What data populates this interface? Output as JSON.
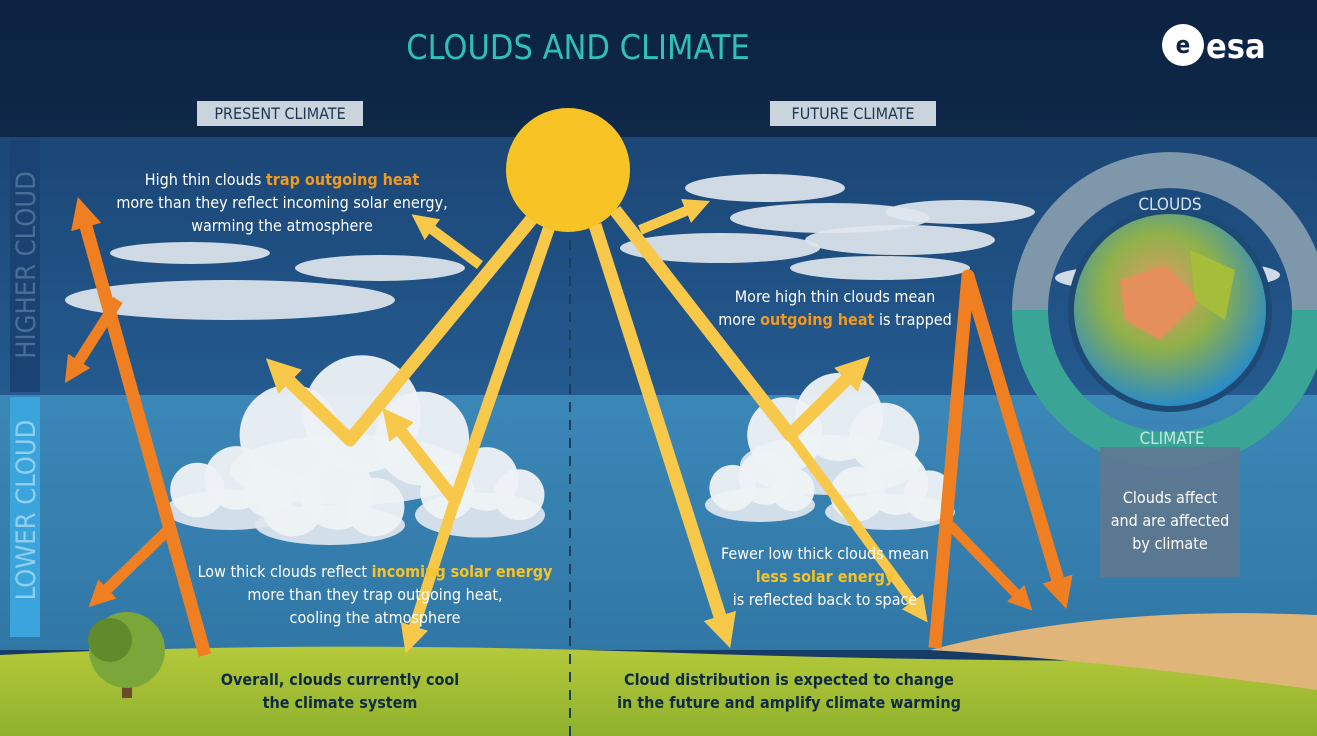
{
  "header": {
    "title": "CLOUDS AND CLIMATE",
    "logo": "esa"
  },
  "panels": {
    "present": "PRESENT CLIMATE",
    "future": "FUTURE CLIMATE"
  },
  "side_labels": {
    "higher": "HIGHER CLOUD",
    "lower": "LOWER CLOUD"
  },
  "notes": [
    {
      "lines": [
        [
          {
            "text": "High thin clouds "
          },
          {
            "text": "trap outgoing heat",
            "emphasis": "#f39a1e"
          }
        ],
        [
          {
            "text": "more than they reflect incoming solar energy,"
          }
        ],
        [
          {
            "text": "warming the atmosphere"
          }
        ]
      ]
    },
    {
      "lines": [
        [
          {
            "text": "Low thick clouds reflect "
          },
          {
            "text": "incoming solar energy",
            "emphasis": "#f7c325"
          }
        ],
        [
          {
            "text": "more than they trap outgoing heat,"
          }
        ],
        [
          {
            "text": "cooling the atmosphere"
          }
        ]
      ]
    },
    {
      "lines": [
        [
          {
            "text": "More high thin clouds mean"
          }
        ],
        [
          {
            "text": "more "
          },
          {
            "text": "outgoing heat",
            "emphasis": "#f39a1e"
          },
          {
            "text": " is trapped"
          }
        ]
      ]
    },
    {
      "lines": [
        [
          {
            "text": "Fewer low thick clouds mean"
          }
        ],
        [
          {
            "text": "less solar energy",
            "emphasis": "#f7c325"
          }
        ],
        [
          {
            "text": "is reflected back to space"
          }
        ]
      ]
    }
  ],
  "summary": {
    "present": [
      "Overall, clouds currently cool",
      "the climate system"
    ],
    "future": [
      "Cloud distribution is expected to change",
      "in the future and amplify climate warming"
    ]
  },
  "cycle": {
    "top": "CLOUDS",
    "bottom": "CLIMATE",
    "caption": [
      "Clouds affect",
      "and are affected",
      "by climate"
    ]
  }
}
